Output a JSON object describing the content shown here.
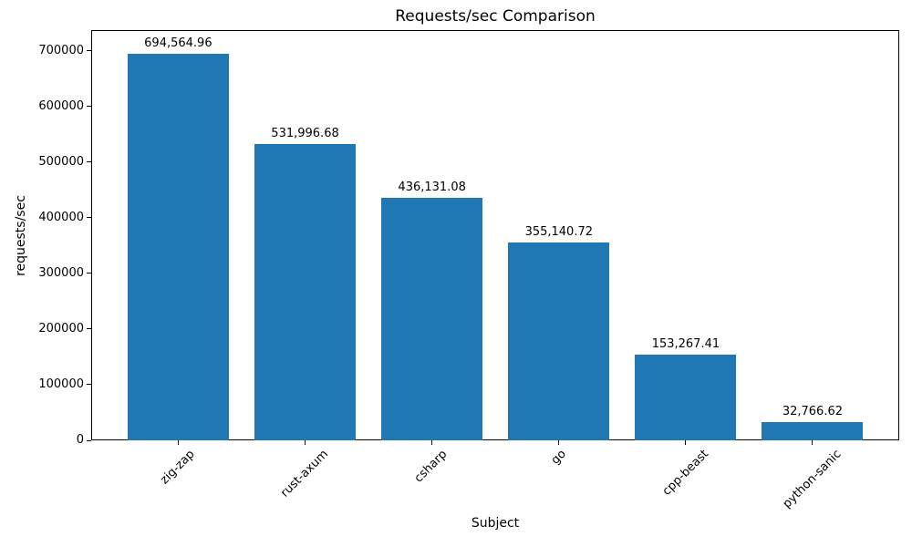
{
  "chart_data": {
    "type": "bar",
    "title": "Requests/sec Comparison",
    "xlabel": "Subject",
    "ylabel": "requests/sec",
    "categories": [
      "zig-zap",
      "rust-axum",
      "csharp",
      "go",
      "cpp-beast",
      "python-sanic"
    ],
    "values": [
      694564.96,
      531996.68,
      436131.08,
      355140.72,
      153267.41,
      32766.62
    ],
    "value_labels": [
      "694,564.96",
      "531,996.68",
      "436,131.08",
      "355,140.72",
      "153,267.41",
      "32,766.62"
    ],
    "yticks": [
      0,
      100000,
      200000,
      300000,
      400000,
      500000,
      600000,
      700000
    ],
    "ylim": [
      0,
      737000
    ],
    "bar_color": "#1f77b4",
    "grid": false,
    "legend_position": "none",
    "x_tick_rotation_deg": 45
  }
}
